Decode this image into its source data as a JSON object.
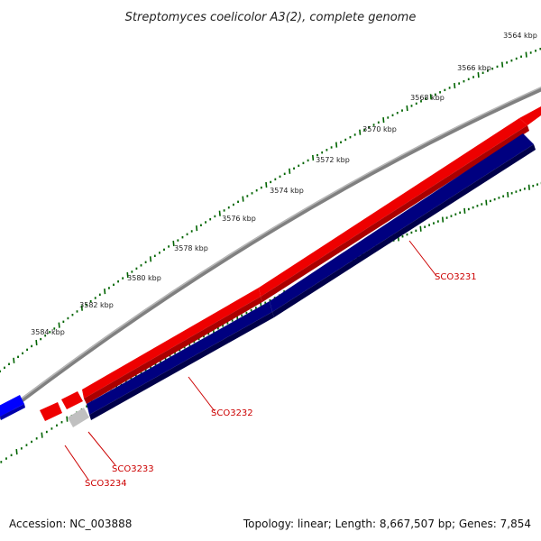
{
  "title": "Streptomyces coelicolor A3(2), complete genome",
  "scale_labels": [
    "3564 kbp",
    "3566 kbp",
    "3568 kbp",
    "3570 kbp",
    "3572 kbp",
    "3574 kbp",
    "3576 kbp",
    "3578 kbp",
    "3580 kbp",
    "3582 kbp",
    "3584 kbp"
  ],
  "genes": [
    {
      "name": "SCO3231",
      "strand": "reverse",
      "color": "#000080"
    },
    {
      "name": "SCO3232",
      "strand": "reverse",
      "color": "#000080"
    },
    {
      "name": "SCO3233",
      "strand": "reverse",
      "color": "#c0c0c0"
    },
    {
      "name": "SCO3234",
      "strand": "forward",
      "color": "#ff0000"
    }
  ],
  "colors": {
    "forward_feature": "#ff0000",
    "reverse_feature": "#000080",
    "other_feature": "#0000ff",
    "backbone": "#808080",
    "ticks": "#006400",
    "label": "#cc0000"
  },
  "footer": {
    "accession": "Accession: NC_003888",
    "stats": "Topology: linear; Length: 8,667,507 bp; Genes: 7,854"
  }
}
